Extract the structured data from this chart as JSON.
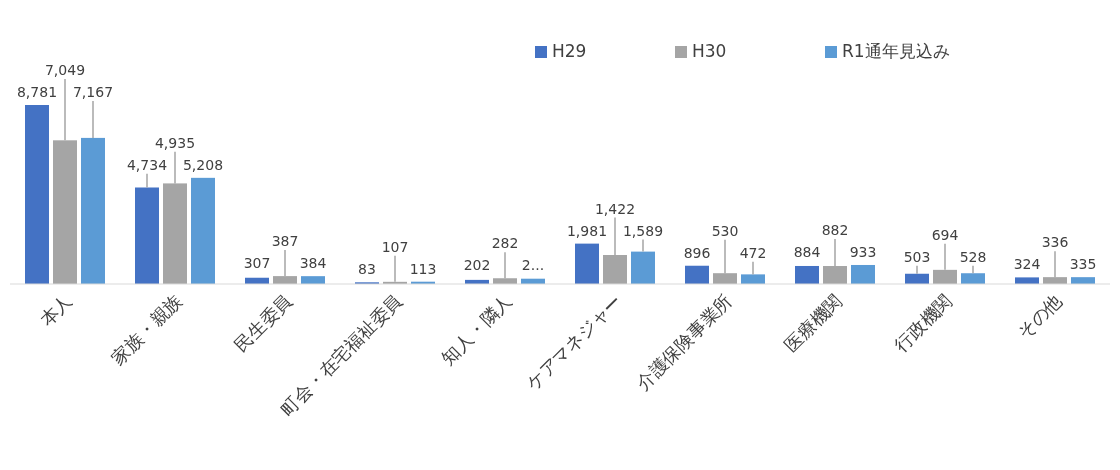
{
  "chart_data": {
    "type": "bar",
    "categories": [
      "本人",
      "家族・親族",
      "民生委員",
      "町会・在宅福祉委員",
      "知人・隣人",
      "ケアマネジャー",
      "介護保険事業所",
      "医療機関",
      "行政機関",
      "その他"
    ],
    "series": [
      {
        "name": "H29",
        "color": "#4472c4",
        "values": [
          8781,
          4734,
          307,
          83,
          202,
          1981,
          896,
          884,
          503,
          324
        ],
        "value_labels": [
          "8,781",
          "4,734",
          "307",
          "83",
          "202",
          "1,981",
          "896",
          "884",
          "503",
          "324"
        ]
      },
      {
        "name": "H30",
        "color": "#a5a5a5",
        "values": [
          7049,
          4935,
          387,
          107,
          282,
          1422,
          530,
          882,
          694,
          336
        ],
        "value_labels": [
          "7,049",
          "4,935",
          "387",
          "107",
          "282",
          "1,422",
          "530",
          "882",
          "694",
          "336"
        ]
      },
      {
        "name": "R1通年見込み",
        "color": "#5b9bd5",
        "values": [
          7167,
          5208,
          384,
          113,
          260,
          1589,
          472,
          933,
          528,
          335
        ],
        "value_labels": [
          "7,167",
          "5,208",
          "384",
          "113",
          "2...",
          "1,589",
          "472",
          "933",
          "528",
          "335"
        ]
      }
    ],
    "legend": "top right"
  }
}
